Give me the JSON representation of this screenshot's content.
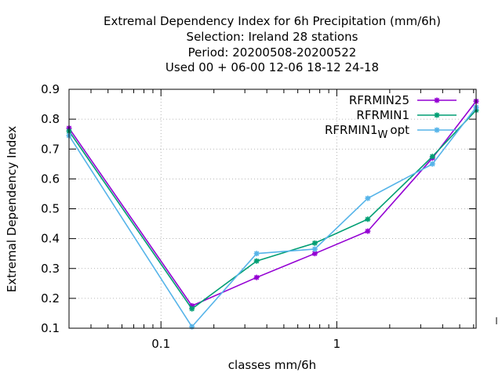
{
  "chart_data": {
    "type": "line",
    "title_lines": [
      "Extremal Dependency Index  for 6h Precipitation (mm/6h)",
      "Selection: Ireland     28 stations",
      "Period: 20200508-20200522",
      "Used  00 + 06-00 12-06 18-12 24-18"
    ],
    "xlabel": "classes mm/6h",
    "ylabel": "Extremal Dependency Index",
    "xscale": "log",
    "xlim": [
      0.03,
      6.2
    ],
    "ylim": [
      0.1,
      0.9
    ],
    "grid": true,
    "legend_position": "top-right",
    "x_ticks": [
      {
        "value": 0.1,
        "label": "0.1"
      },
      {
        "value": 1,
        "label": "1"
      }
    ],
    "y_ticks": [
      {
        "value": 0.1,
        "label": "0.1"
      },
      {
        "value": 0.2,
        "label": "0.2"
      },
      {
        "value": 0.3,
        "label": "0.3"
      },
      {
        "value": 0.4,
        "label": "0.4"
      },
      {
        "value": 0.5,
        "label": "0.5"
      },
      {
        "value": 0.6,
        "label": "0.6"
      },
      {
        "value": 0.7,
        "label": "0.7"
      },
      {
        "value": 0.8,
        "label": "0.8"
      },
      {
        "value": 0.9,
        "label": "0.9"
      }
    ],
    "x": [
      0.03,
      0.15,
      0.35,
      0.75,
      1.5,
      3.5,
      6.2
    ],
    "series": [
      {
        "name": "RFRMIN25",
        "color": "#9400d3",
        "values": [
          0.77,
          0.175,
          0.27,
          0.35,
          0.425,
          0.67,
          0.86
        ]
      },
      {
        "name": "RFRMIN1",
        "color": "#009e73",
        "values": [
          0.76,
          0.165,
          0.325,
          0.385,
          0.465,
          0.675,
          0.83
        ]
      },
      {
        "name": "RFRMIN1",
        "name_subscript": "W",
        "name_suffix": "opt",
        "color": "#56b4e9",
        "values": [
          0.745,
          0.105,
          0.35,
          0.365,
          0.535,
          0.65,
          0.84
        ]
      }
    ]
  }
}
